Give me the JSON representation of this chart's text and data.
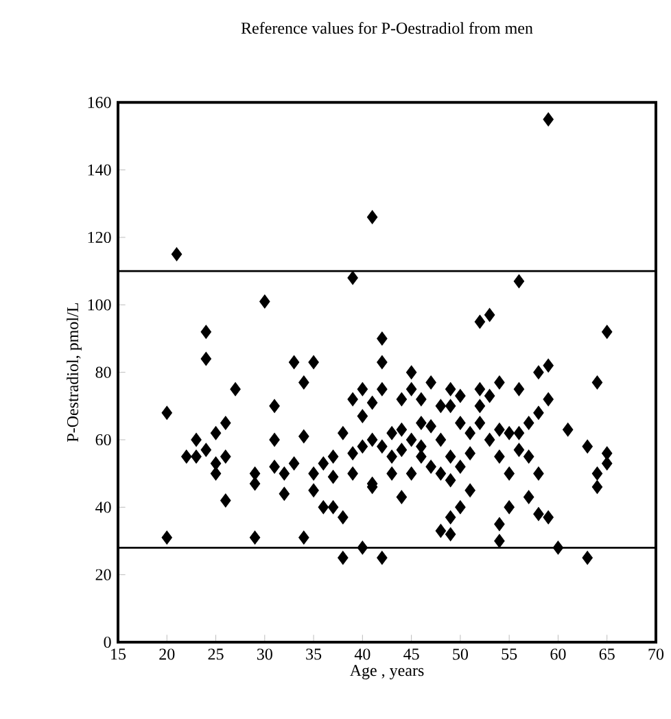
{
  "chart_data": {
    "type": "scatter",
    "title": "Reference values for P-Oestradiol from men",
    "xlabel": "Age , years",
    "ylabel": "P-Oestradiol, pmol/L",
    "xlim": [
      15,
      70
    ],
    "xticks": [
      15,
      20,
      25,
      30,
      35,
      40,
      45,
      50,
      55,
      60,
      65,
      70
    ],
    "ylim": [
      0,
      160
    ],
    "yticks": [
      0,
      20,
      40,
      60,
      80,
      100,
      120,
      140,
      160
    ],
    "marker": "diamond",
    "ref_lines": [
      {
        "axis": "y",
        "value": 110,
        "color": "#000000"
      },
      {
        "axis": "y",
        "value": 28,
        "color": "#000000"
      }
    ],
    "series": [
      {
        "color": "#000000",
        "x": [
          20,
          20,
          21,
          22,
          23,
          23,
          24,
          24,
          24,
          25,
          25,
          25,
          26,
          26,
          26,
          27,
          29,
          29,
          29,
          30,
          31,
          31,
          31,
          32,
          32,
          33,
          33,
          34,
          34,
          34,
          35,
          35,
          35,
          36,
          36,
          37,
          37,
          37,
          38,
          38,
          38,
          39,
          39,
          39,
          39,
          40,
          40,
          40,
          40,
          41,
          41,
          41,
          41,
          41,
          42,
          42,
          42,
          42,
          42,
          43,
          43,
          43,
          44,
          44,
          44,
          44,
          45,
          45,
          45,
          45,
          46,
          46,
          46,
          46,
          47,
          47,
          47,
          48,
          48,
          48,
          48,
          49,
          49,
          49,
          49,
          49,
          49,
          50,
          50,
          50,
          50,
          51,
          51,
          51,
          52,
          52,
          52,
          52,
          53,
          53,
          53,
          54,
          54,
          54,
          54,
          54,
          55,
          55,
          55,
          56,
          56,
          56,
          56,
          57,
          57,
          57,
          58,
          58,
          58,
          58,
          59,
          59,
          59,
          59,
          60,
          61,
          63,
          63,
          64,
          64,
          64,
          65,
          65,
          65
        ],
        "values": [
          68,
          31,
          115,
          55,
          60,
          55,
          92,
          84,
          57,
          62,
          53,
          50,
          65,
          55,
          42,
          75,
          50,
          31,
          47,
          101,
          70,
          60,
          52,
          44,
          50,
          53,
          83,
          77,
          61,
          31,
          83,
          50,
          45,
          53,
          40,
          55,
          49,
          40,
          37,
          25,
          62,
          108,
          72,
          56,
          50,
          75,
          67,
          28,
          58,
          126,
          71,
          60,
          47,
          46,
          90,
          83,
          75,
          25,
          58,
          62,
          50,
          55,
          72,
          63,
          57,
          43,
          80,
          75,
          60,
          50,
          65,
          58,
          55,
          72,
          77,
          64,
          52,
          50,
          60,
          70,
          33,
          75,
          70,
          55,
          48,
          37,
          32,
          73,
          65,
          52,
          40,
          62,
          56,
          45,
          95,
          75,
          70,
          65,
          97,
          60,
          73,
          77,
          63,
          55,
          35,
          30,
          62,
          50,
          40,
          107,
          75,
          62,
          57,
          65,
          43,
          55,
          80,
          68,
          50,
          38,
          155,
          82,
          72,
          37,
          28,
          63,
          25,
          58,
          46,
          50,
          77,
          92,
          56,
          53
        ]
      }
    ]
  }
}
